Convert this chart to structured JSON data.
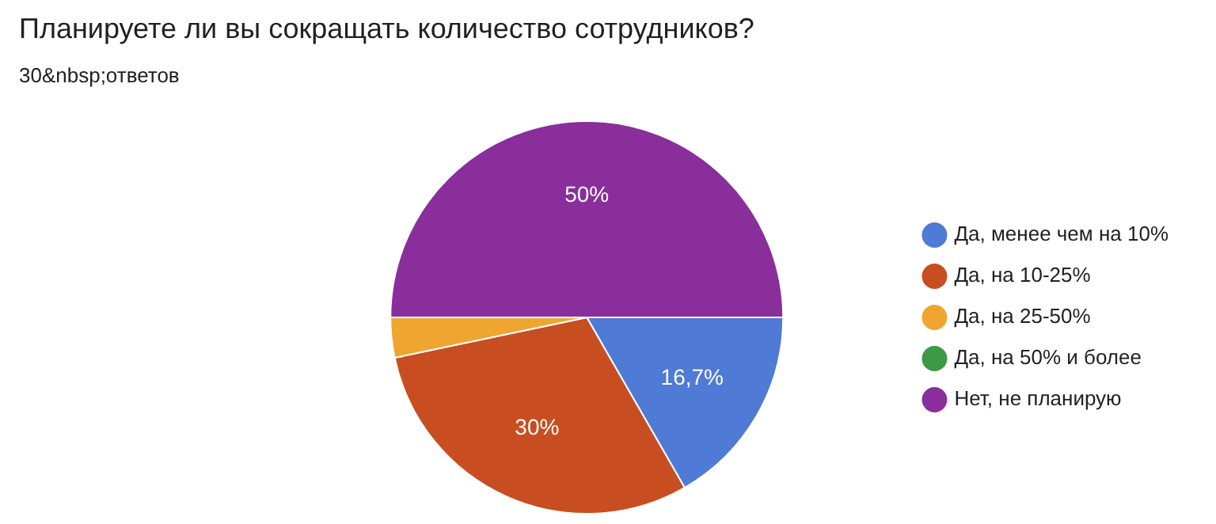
{
  "chart_data": {
    "type": "pie",
    "title": "Планируете ли вы сокращать количество сотрудников?",
    "subtitle": "30&nbsp;ответов",
    "categories": [
      "Да, менее чем на 10%",
      "Да, на 10-25%",
      "Да, на 25-50%",
      "Да, на 50% и более",
      "Нет, не планирую"
    ],
    "values": [
      16.7,
      30,
      3.3,
      0,
      50
    ],
    "colors": [
      "#4f7ad6",
      "#c84e21",
      "#efa630",
      "#3c9a45",
      "#8a2e9c"
    ],
    "value_labels": [
      "16,7%",
      "30%",
      null,
      null,
      "50%"
    ],
    "legend": "right"
  }
}
